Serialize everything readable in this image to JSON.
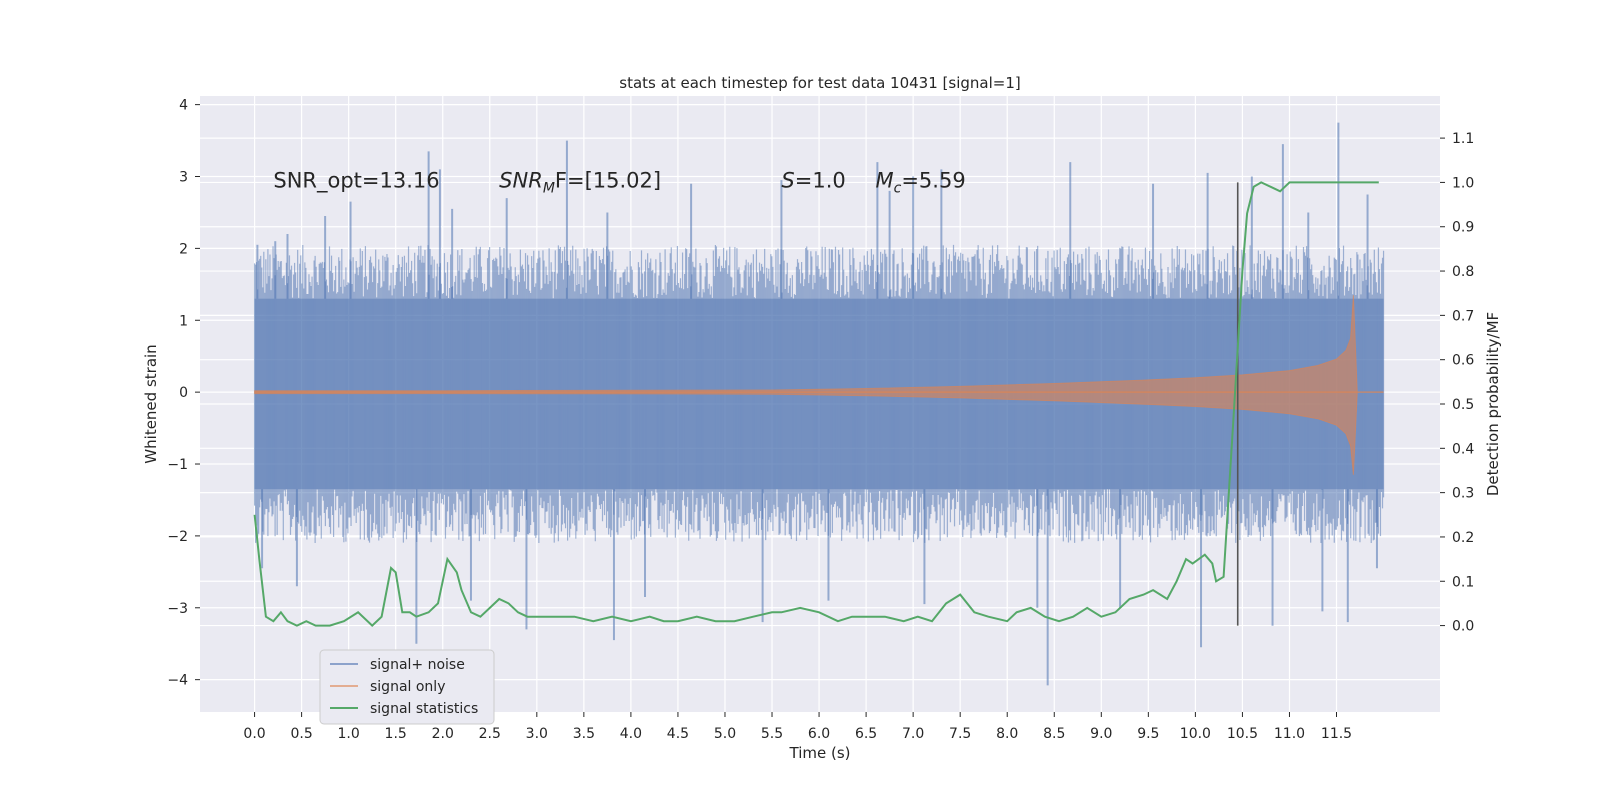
{
  "chart_data": {
    "type": "line",
    "title": "stats at each timestep for test data 10431 [signal=1]",
    "xlabel": "Time (s)",
    "ylabel": "Whitened strain",
    "y2label": "Detection probability/MF",
    "xlim": [
      -0.58,
      12.6
    ],
    "ylim": [
      -4.45,
      4.12
    ],
    "y2lim": [
      -0.195,
      1.195
    ],
    "x_ticks": [
      0.0,
      0.5,
      1.0,
      1.5,
      2.0,
      2.5,
      3.0,
      3.5,
      4.0,
      4.5,
      5.0,
      5.5,
      6.0,
      6.5,
      7.0,
      7.5,
      8.0,
      8.5,
      9.0,
      9.5,
      10.0,
      10.5,
      11.0,
      11.5
    ],
    "x_tick_labels": [
      "0.0",
      "0.5",
      "1.0",
      "1.5",
      "2.0",
      "2.5",
      "3.0",
      "3.5",
      "4.0",
      "4.5",
      "5.0",
      "5.5",
      "6.0",
      "6.5",
      "7.0",
      "7.5",
      "8.0",
      "8.5",
      "9.0",
      "9.5",
      "10.0",
      "10.5",
      "11.0",
      "11.5"
    ],
    "y_ticks": [
      -4,
      -3,
      -2,
      -1,
      0,
      1,
      2,
      3,
      4
    ],
    "y_tick_labels": [
      "−4",
      "−3",
      "−2",
      "−1",
      "0",
      "1",
      "2",
      "3",
      "4"
    ],
    "y2_ticks": [
      0.0,
      0.1,
      0.2,
      0.3,
      0.4,
      0.5,
      0.6,
      0.7,
      0.8,
      0.9,
      1.0,
      1.1
    ],
    "y2_tick_labels": [
      "0.0",
      "0.1",
      "0.2",
      "0.3",
      "0.4",
      "0.5",
      "0.6",
      "0.7",
      "0.8",
      "0.9",
      "1.0",
      "1.1"
    ],
    "noise_band": {
      "t_start": 0.0,
      "t_end": 12.0,
      "dense_low": -1.35,
      "dense_high": 1.3,
      "spikes": [
        {
          "t": 0.03,
          "y": 2.05
        },
        {
          "t": 0.22,
          "y": 2.1
        },
        {
          "t": 0.35,
          "y": 2.2
        },
        {
          "t": 0.75,
          "y": 2.45
        },
        {
          "t": 1.02,
          "y": 2.65
        },
        {
          "t": 1.85,
          "y": 3.35
        },
        {
          "t": 1.97,
          "y": 3.1
        },
        {
          "t": 2.1,
          "y": 2.55
        },
        {
          "t": 2.68,
          "y": 2.7
        },
        {
          "t": 3.32,
          "y": 3.5
        },
        {
          "t": 3.75,
          "y": 2.5
        },
        {
          "t": 4.64,
          "y": 2.9
        },
        {
          "t": 5.6,
          "y": 2.95
        },
        {
          "t": 6.62,
          "y": 3.2
        },
        {
          "t": 6.75,
          "y": 2.8
        },
        {
          "t": 7.0,
          "y": 3.0
        },
        {
          "t": 7.3,
          "y": 3.1
        },
        {
          "t": 8.67,
          "y": 3.2
        },
        {
          "t": 9.55,
          "y": 2.9
        },
        {
          "t": 10.13,
          "y": 3.05
        },
        {
          "t": 10.6,
          "y": 3.0
        },
        {
          "t": 10.93,
          "y": 3.45
        },
        {
          "t": 11.2,
          "y": 2.5
        },
        {
          "t": 11.52,
          "y": 3.75
        },
        {
          "t": 11.83,
          "y": 2.75
        },
        {
          "t": 0.08,
          "y": -2.45
        },
        {
          "t": 0.45,
          "y": -2.7
        },
        {
          "t": 1.72,
          "y": -3.5
        },
        {
          "t": 2.3,
          "y": -2.9
        },
        {
          "t": 2.89,
          "y": -3.3
        },
        {
          "t": 3.82,
          "y": -3.45
        },
        {
          "t": 4.15,
          "y": -2.85
        },
        {
          "t": 5.4,
          "y": -3.2
        },
        {
          "t": 6.1,
          "y": -2.9
        },
        {
          "t": 7.12,
          "y": -2.95
        },
        {
          "t": 8.32,
          "y": -3.0
        },
        {
          "t": 8.43,
          "y": -4.08
        },
        {
          "t": 9.2,
          "y": -3.0
        },
        {
          "t": 10.06,
          "y": -3.55
        },
        {
          "t": 10.82,
          "y": -3.25
        },
        {
          "t": 11.35,
          "y": -3.05
        },
        {
          "t": 11.62,
          "y": -3.2
        },
        {
          "t": 11.93,
          "y": -2.45
        }
      ]
    },
    "signal_envelope": {
      "t": [
        0.0,
        2.0,
        4.0,
        5.5,
        6.5,
        7.5,
        8.5,
        9.5,
        10.0,
        10.5,
        11.0,
        11.3,
        11.5,
        11.6,
        11.65,
        11.68,
        11.72
      ],
      "amp": [
        0.02,
        0.02,
        0.025,
        0.03,
        0.05,
        0.08,
        0.12,
        0.17,
        0.2,
        0.24,
        0.3,
        0.37,
        0.46,
        0.58,
        0.75,
        1.35,
        0.02
      ],
      "end_t": 11.72
    },
    "series": [
      {
        "name": "signal statistics",
        "color": "#55a868",
        "x": [
          0.0,
          0.05,
          0.12,
          0.2,
          0.28,
          0.35,
          0.45,
          0.55,
          0.65,
          0.8,
          0.95,
          1.1,
          1.25,
          1.35,
          1.45,
          1.5,
          1.57,
          1.65,
          1.72,
          1.85,
          1.95,
          2.05,
          2.15,
          2.2,
          2.3,
          2.4,
          2.5,
          2.6,
          2.7,
          2.8,
          2.9,
          3.0,
          3.2,
          3.4,
          3.6,
          3.8,
          4.0,
          4.2,
          4.35,
          4.5,
          4.7,
          4.9,
          5.1,
          5.3,
          5.5,
          5.6,
          5.8,
          6.0,
          6.2,
          6.35,
          6.5,
          6.7,
          6.9,
          7.05,
          7.2,
          7.35,
          7.5,
          7.65,
          7.8,
          8.0,
          8.1,
          8.25,
          8.4,
          8.55,
          8.7,
          8.85,
          9.0,
          9.15,
          9.3,
          9.45,
          9.55,
          9.7,
          9.8,
          9.9,
          9.97,
          10.1,
          10.18,
          10.22,
          10.3,
          10.4,
          10.5,
          10.55,
          10.62,
          10.7,
          10.8,
          10.9,
          11.0,
          11.1,
          11.3,
          11.5,
          11.7,
          11.95
        ],
        "y": [
          0.25,
          0.15,
          0.02,
          0.01,
          0.03,
          0.01,
          0.0,
          0.01,
          0.0,
          0.0,
          0.01,
          0.03,
          0.0,
          0.02,
          0.13,
          0.12,
          0.03,
          0.03,
          0.02,
          0.03,
          0.05,
          0.15,
          0.12,
          0.08,
          0.03,
          0.02,
          0.04,
          0.06,
          0.05,
          0.03,
          0.02,
          0.02,
          0.02,
          0.02,
          0.01,
          0.02,
          0.01,
          0.02,
          0.01,
          0.01,
          0.02,
          0.01,
          0.01,
          0.02,
          0.03,
          0.03,
          0.04,
          0.03,
          0.01,
          0.02,
          0.02,
          0.02,
          0.01,
          0.02,
          0.01,
          0.05,
          0.07,
          0.03,
          0.02,
          0.01,
          0.03,
          0.04,
          0.02,
          0.01,
          0.02,
          0.04,
          0.02,
          0.03,
          0.06,
          0.07,
          0.08,
          0.06,
          0.1,
          0.15,
          0.14,
          0.16,
          0.14,
          0.1,
          0.11,
          0.45,
          0.8,
          0.93,
          0.99,
          1.0,
          0.99,
          0.98,
          1.0,
          1.0,
          1.0,
          1.0,
          1.0,
          1.0
        ]
      }
    ],
    "vline": {
      "t": 10.45,
      "y_low": 0.0,
      "y_high": 1.0
    },
    "annotations": [
      {
        "text": "SNR_opt=13.16",
        "t": 0.2,
        "y": 2.85
      },
      {
        "text": "SNR_MF=[15.02]",
        "base": "SNR",
        "sub": "M",
        "rest": "F=[15.02]",
        "t": 2.6,
        "y": 2.85
      },
      {
        "text": "S=1.0",
        "base": "S",
        "rest": "=1.0",
        "t": 5.6,
        "y": 2.85
      },
      {
        "text": "M_c=5.59",
        "base": "M",
        "sub": "c",
        "rest": "=5.59",
        "t": 6.6,
        "y": 2.85
      }
    ],
    "legend": {
      "placement": "lower-left",
      "entries": [
        {
          "label": "signal+ noise",
          "color": "#4c72b0"
        },
        {
          "label": "signal only",
          "color": "#dd8452"
        },
        {
          "label": "signal statistics",
          "color": "#55a868"
        }
      ]
    },
    "colors": {
      "background": "#eaeaf2",
      "grid": "#ffffff",
      "noise": "#4c72b0",
      "signal": "#dd8452",
      "stat": "#55a868",
      "vline": "#555555"
    }
  }
}
